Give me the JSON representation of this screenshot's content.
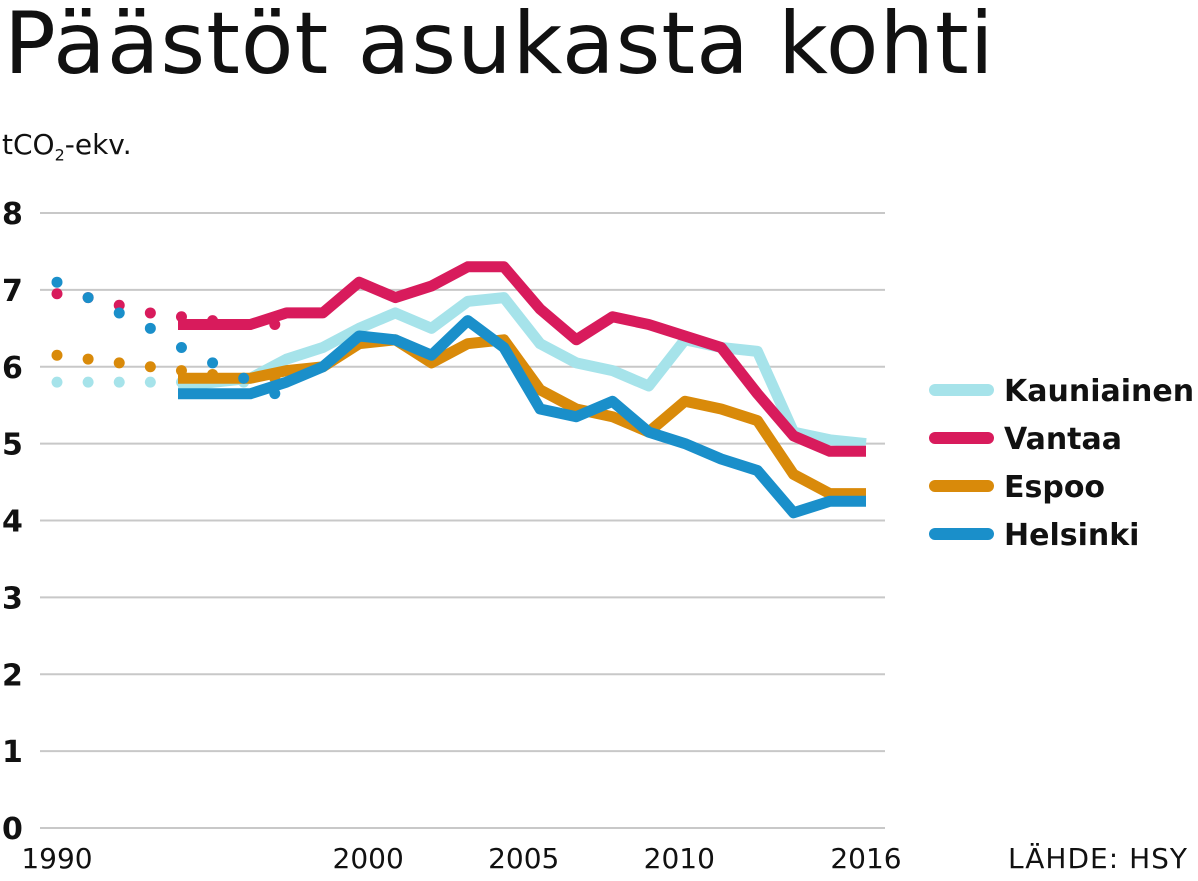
{
  "title": "Päästöt asukasta kohti",
  "unit_label": "tCO",
  "unit_sub": "2",
  "unit_suffix": "-ekv.",
  "source": "LÄHDE: HSY",
  "colors": {
    "Kauniainen": "#a6e3ea",
    "Vantaa": "#d81b5c",
    "Espoo": "#d98a0a",
    "Helsinki": "#1a8fca",
    "grid": "#c8c8c8"
  },
  "chart_data": {
    "type": "line",
    "title": "Päästöt asukasta kohti",
    "ylabel": "tCO2-ekv.",
    "ylim": [
      0,
      8
    ],
    "yticks": [
      0,
      1,
      2,
      3,
      4,
      5,
      6,
      7,
      8
    ],
    "xlim": [
      1990,
      2016
    ],
    "xtick_labels": [
      "1990",
      "2000",
      "2005",
      "2010",
      "2016"
    ],
    "xtick_positions": [
      1990,
      2000,
      2005,
      2010,
      2016
    ],
    "grid": true,
    "legend_position": "right",
    "note": "Dotted segments 1990–1999, solid line 1999–2016",
    "x_dotted": [
      1990,
      1991,
      1992,
      1993,
      1994,
      1995,
      1996,
      1997
    ],
    "x_solid": [
      1997,
      1998,
      1999,
      2000,
      2001,
      2002,
      2003,
      2004,
      2005,
      2006,
      2007,
      2008,
      2009,
      2010,
      2011,
      2012,
      2013,
      2014,
      2015,
      2016
    ],
    "series": [
      {
        "name": "Kauniainen",
        "dotted": [
          5.8,
          5.8,
          5.8,
          5.8,
          5.8,
          5.8,
          5.8,
          5.75
        ],
        "solid": [
          5.75,
          5.8,
          5.85,
          6.1,
          6.25,
          6.5,
          6.7,
          6.5,
          6.85,
          6.9,
          6.3,
          6.05,
          5.95,
          5.75,
          6.35,
          6.25,
          6.2,
          5.15,
          5.05,
          5.0
        ]
      },
      {
        "name": "Vantaa",
        "dotted": [
          6.95,
          6.9,
          6.8,
          6.7,
          6.65,
          6.6,
          6.55,
          6.55
        ],
        "solid": [
          6.55,
          6.55,
          6.55,
          6.7,
          6.7,
          7.1,
          6.9,
          7.05,
          7.3,
          7.3,
          6.75,
          6.35,
          6.65,
          6.55,
          6.4,
          6.25,
          5.65,
          5.1,
          4.9,
          4.9
        ]
      },
      {
        "name": "Espoo",
        "dotted": [
          6.15,
          6.1,
          6.05,
          6.0,
          5.95,
          5.9,
          5.85,
          5.85
        ],
        "solid": [
          5.85,
          5.85,
          5.85,
          5.95,
          6.0,
          6.3,
          6.35,
          6.05,
          6.3,
          6.35,
          5.7,
          5.45,
          5.35,
          5.15,
          5.55,
          5.45,
          5.3,
          4.6,
          4.35,
          4.35
        ]
      },
      {
        "name": "Helsinki",
        "dotted": [
          7.1,
          6.9,
          6.7,
          6.5,
          6.25,
          6.05,
          5.85,
          5.65
        ],
        "solid": [
          5.65,
          5.65,
          5.65,
          5.8,
          6.0,
          6.4,
          6.35,
          6.15,
          6.6,
          6.25,
          5.45,
          5.35,
          5.55,
          5.15,
          5.0,
          4.8,
          4.65,
          4.1,
          4.25,
          4.25
        ]
      }
    ],
    "legend": [
      "Kauniainen",
      "Vantaa",
      "Espoo",
      "Helsinki"
    ]
  }
}
